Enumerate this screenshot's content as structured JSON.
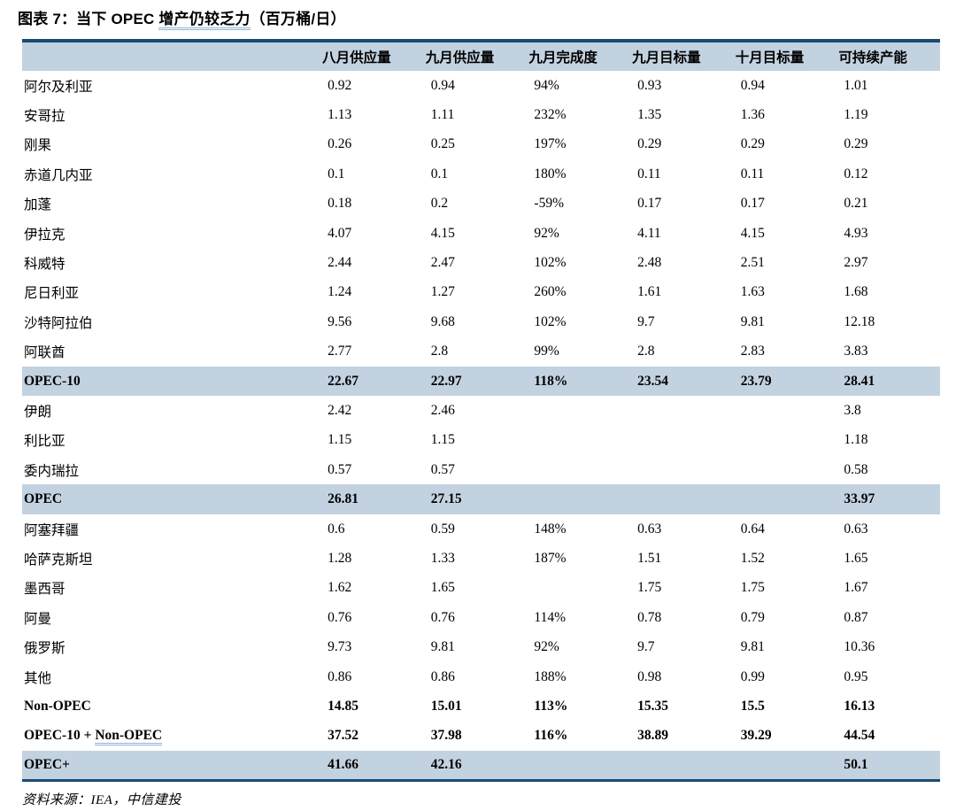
{
  "figure": {
    "title_prefix": "图表 7：当下 OPEC ",
    "title_underlined": "增产仍较乏力",
    "title_suffix": "（百万桶/日）",
    "source": "资料来源：IEA，中信建投"
  },
  "colors": {
    "header_band": "#c3d2e0",
    "border_dark": "#1b4a72",
    "underline_blue": "#8db4dc",
    "text": "#000000"
  },
  "table": {
    "columns": [
      "",
      "八月供应量",
      "九月供应量",
      "九月完成度",
      "九月目标量",
      "十月目标量",
      "可持续产能"
    ],
    "rows": [
      {
        "label": "阿尔及利亚",
        "values": [
          "0.92",
          "0.94",
          "94%",
          "0.93",
          "0.94",
          "1.01"
        ],
        "bold": false,
        "highlight": false
      },
      {
        "label": "安哥拉",
        "values": [
          "1.13",
          "1.11",
          "232%",
          "1.35",
          "1.36",
          "1.19"
        ],
        "bold": false,
        "highlight": false
      },
      {
        "label": "刚果",
        "values": [
          "0.26",
          "0.25",
          "197%",
          "0.29",
          "0.29",
          "0.29"
        ],
        "bold": false,
        "highlight": false
      },
      {
        "label": "赤道几内亚",
        "values": [
          "0.1",
          "0.1",
          "180%",
          "0.11",
          "0.11",
          "0.12"
        ],
        "bold": false,
        "highlight": false
      },
      {
        "label": "加蓬",
        "values": [
          "0.18",
          "0.2",
          "-59%",
          "0.17",
          "0.17",
          "0.21"
        ],
        "bold": false,
        "highlight": false
      },
      {
        "label": "伊拉克",
        "values": [
          "4.07",
          "4.15",
          "92%",
          "4.11",
          "4.15",
          "4.93"
        ],
        "bold": false,
        "highlight": false
      },
      {
        "label": "科威特",
        "values": [
          "2.44",
          "2.47",
          "102%",
          "2.48",
          "2.51",
          "2.97"
        ],
        "bold": false,
        "highlight": false
      },
      {
        "label": "尼日利亚",
        "values": [
          "1.24",
          "1.27",
          "260%",
          "1.61",
          "1.63",
          "1.68"
        ],
        "bold": false,
        "highlight": false
      },
      {
        "label": "沙特阿拉伯",
        "values": [
          "9.56",
          "9.68",
          "102%",
          "9.7",
          "9.81",
          "12.18"
        ],
        "bold": false,
        "highlight": false
      },
      {
        "label": "阿联酋",
        "values": [
          "2.77",
          "2.8",
          "99%",
          "2.8",
          "2.83",
          "3.83"
        ],
        "bold": false,
        "highlight": false
      },
      {
        "label": "OPEC-10",
        "values": [
          "22.67",
          "22.97",
          "118%",
          "23.54",
          "23.79",
          "28.41"
        ],
        "bold": true,
        "highlight": true
      },
      {
        "label": "伊朗",
        "values": [
          "2.42",
          "2.46",
          "",
          "",
          "",
          "3.8"
        ],
        "bold": false,
        "highlight": false
      },
      {
        "label": "利比亚",
        "values": [
          "1.15",
          "1.15",
          "",
          "",
          "",
          "1.18"
        ],
        "bold": false,
        "highlight": false
      },
      {
        "label": "委内瑞拉",
        "values": [
          "0.57",
          "0.57",
          "",
          "",
          "",
          "0.58"
        ],
        "bold": false,
        "highlight": false
      },
      {
        "label": "OPEC",
        "values": [
          "26.81",
          "27.15",
          "",
          "",
          "",
          "33.97"
        ],
        "bold": true,
        "highlight": true
      },
      {
        "label": "阿塞拜疆",
        "values": [
          "0.6",
          "0.59",
          "148%",
          "0.63",
          "0.64",
          "0.63"
        ],
        "bold": false,
        "highlight": false
      },
      {
        "label": "哈萨克斯坦",
        "values": [
          "1.28",
          "1.33",
          "187%",
          "1.51",
          "1.52",
          "1.65"
        ],
        "bold": false,
        "highlight": false
      },
      {
        "label": "墨西哥",
        "values": [
          "1.62",
          "1.65",
          "",
          "1.75",
          "1.75",
          "1.67"
        ],
        "bold": false,
        "highlight": false
      },
      {
        "label": "阿曼",
        "values": [
          "0.76",
          "0.76",
          "114%",
          "0.78",
          "0.79",
          "0.87"
        ],
        "bold": false,
        "highlight": false
      },
      {
        "label": "俄罗斯",
        "values": [
          "9.73",
          "9.81",
          "92%",
          "9.7",
          "9.81",
          "10.36"
        ],
        "bold": false,
        "highlight": false
      },
      {
        "label": "其他",
        "values": [
          "0.86",
          "0.86",
          "188%",
          "0.98",
          "0.99",
          "0.95"
        ],
        "bold": false,
        "highlight": false
      },
      {
        "label": "Non-OPEC",
        "values": [
          "14.85",
          "15.01",
          "113%",
          "15.35",
          "15.5",
          "16.13"
        ],
        "bold": true,
        "highlight": false
      },
      {
        "label": "OPEC-10 + Non-OPEC",
        "label_underline": "Non-OPEC",
        "values": [
          "37.52",
          "37.98",
          "116%",
          "38.89",
          "39.29",
          "44.54"
        ],
        "bold": true,
        "highlight": false
      },
      {
        "label": "OPEC+",
        "values": [
          "41.66",
          "42.16",
          "",
          "",
          "",
          "50.1"
        ],
        "bold": true,
        "highlight": true
      }
    ]
  }
}
